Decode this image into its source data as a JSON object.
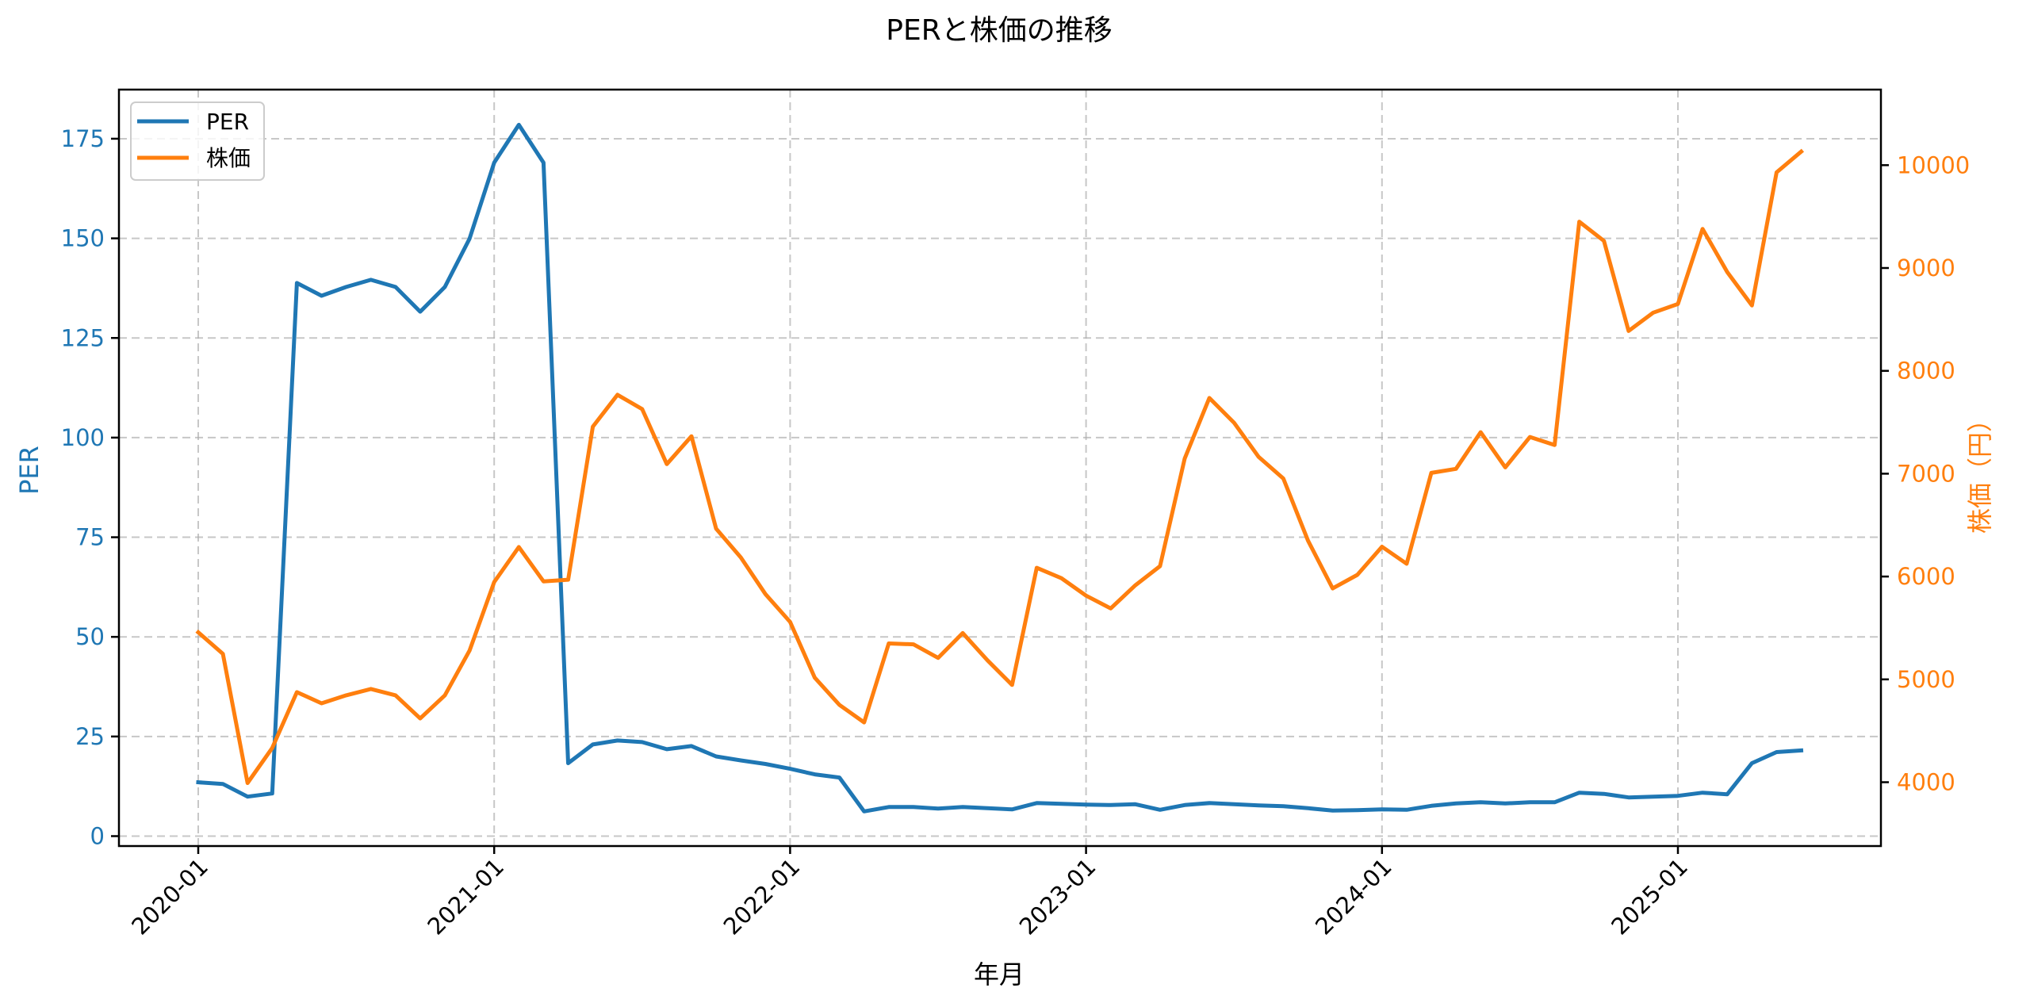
{
  "chart_data": {
    "type": "line",
    "title": "PERと株価の推移",
    "xlabel": "年月",
    "ylabel": "PER",
    "ylabel_right": "株価（円）",
    "x_tick_labels": [
      "2020-01",
      "2021-01",
      "2022-01",
      "2023-01",
      "2024-01",
      "2025-01"
    ],
    "y_ticks_left": [
      0,
      25,
      50,
      75,
      100,
      125,
      150,
      175
    ],
    "y_ticks_right": [
      4000,
      5000,
      6000,
      7000,
      8000,
      9000,
      10000
    ],
    "ylim_left": [
      -1,
      189
    ],
    "ylim_right": [
      3440,
      10800
    ],
    "grid": true,
    "legend_position": "upper left",
    "x": [
      "2020-01",
      "2020-02",
      "2020-03",
      "2020-04",
      "2020-05",
      "2020-06",
      "2020-07",
      "2020-08",
      "2020-09",
      "2020-10",
      "2020-11",
      "2020-12",
      "2021-01",
      "2021-02",
      "2021-03",
      "2021-04",
      "2021-05",
      "2021-06",
      "2021-07",
      "2021-08",
      "2021-09",
      "2021-10",
      "2021-11",
      "2021-12",
      "2022-01",
      "2022-02",
      "2022-03",
      "2022-04",
      "2022-05",
      "2022-06",
      "2022-07",
      "2022-08",
      "2022-09",
      "2022-10",
      "2022-11",
      "2022-12",
      "2023-01",
      "2023-02",
      "2023-03",
      "2023-04",
      "2023-05",
      "2023-06",
      "2023-07",
      "2023-08",
      "2023-09",
      "2023-10",
      "2023-11",
      "2023-12",
      "2024-01",
      "2024-02",
      "2024-03",
      "2024-04",
      "2024-05",
      "2024-06",
      "2024-07",
      "2024-08",
      "2024-09",
      "2024-10",
      "2024-11",
      "2024-12",
      "2025-01",
      "2025-02",
      "2025-03",
      "2025-04",
      "2025-05",
      "2025-06"
    ],
    "series": [
      {
        "name": "PER",
        "axis": "left",
        "color": "#1f77b4",
        "values": [
          13.5,
          13.1,
          9.9,
          10.7,
          138.8,
          135.6,
          137.8,
          139.6,
          137.8,
          131.6,
          137.8,
          149.9,
          169.0,
          178.5,
          169.0,
          18.3,
          23.0,
          24.0,
          23.6,
          21.8,
          22.6,
          20.0,
          19.0,
          18.1,
          16.9,
          15.5,
          14.7,
          6.2,
          7.3,
          7.3,
          6.9,
          7.3,
          7.0,
          6.7,
          8.3,
          8.1,
          7.9,
          7.8,
          8.0,
          6.6,
          7.8,
          8.3,
          8.0,
          7.7,
          7.5,
          7.0,
          6.4,
          6.5,
          6.7,
          6.6,
          7.6,
          8.2,
          8.5,
          8.2,
          8.5,
          8.5,
          10.9,
          10.6,
          9.7,
          9.9,
          10.1,
          10.9,
          10.5,
          18.3,
          21.1,
          21.5
        ]
      },
      {
        "name": "株価",
        "axis": "right",
        "color": "#ff7f0e",
        "values": [
          5457,
          5248,
          3992,
          4333,
          4876,
          4767,
          4845,
          4907,
          4845,
          4620,
          4845,
          5279,
          5946,
          6287,
          5953,
          5969,
          7457,
          7767,
          7628,
          7093,
          7364,
          6465,
          6186,
          5829,
          5558,
          5016,
          4752,
          4581,
          5349,
          5341,
          5209,
          5450,
          5186,
          4946,
          6085,
          5984,
          5814,
          5690,
          5915,
          6101,
          7147,
          7736,
          7496,
          7163,
          6953,
          6349,
          5884,
          6016,
          6290,
          6124,
          7008,
          7047,
          7403,
          7062,
          7357,
          7279,
          9450,
          9264,
          8388,
          8566,
          8650,
          9380,
          8961,
          8636,
          9930,
          10132
        ]
      }
    ]
  },
  "legend": {
    "items": [
      {
        "label": "PER",
        "color": "#1f77b4"
      },
      {
        "label": "株価",
        "color": "#ff7f0e"
      }
    ]
  }
}
